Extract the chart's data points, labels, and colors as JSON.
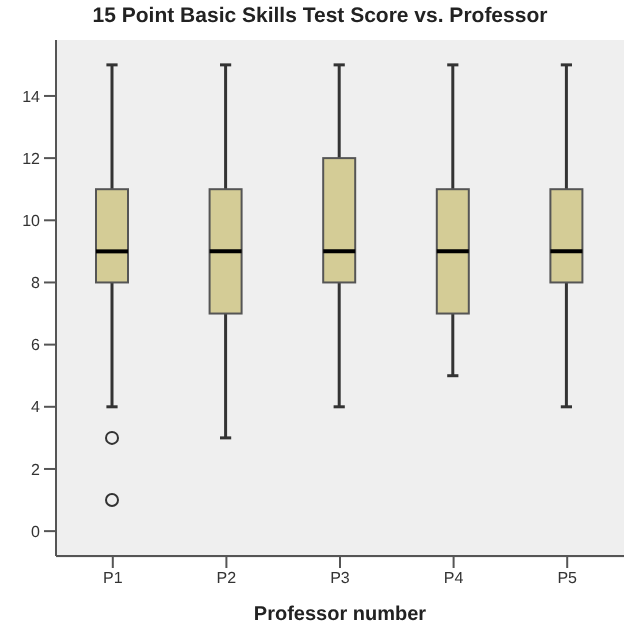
{
  "chart_data": {
    "type": "box",
    "title": "15 Point Basic Skills Test Score vs. Professor",
    "xlabel": "Professor number",
    "categories": [
      "P1",
      "P2",
      "P3",
      "P4",
      "P5"
    ],
    "series": [
      {
        "color": "#d4cc96",
        "boxes": [
          {
            "low": 4,
            "q1": 8,
            "median": 9,
            "q3": 11,
            "high": 15,
            "outliers": [
              3,
              1
            ]
          },
          {
            "low": 3,
            "q1": 7,
            "median": 9,
            "q3": 11,
            "high": 15
          },
          {
            "low": 4,
            "q1": 8,
            "median": 9,
            "q3": 12,
            "high": 15
          },
          {
            "low": 5,
            "q1": 7,
            "median": 9,
            "q3": 11,
            "high": 15
          },
          {
            "low": 4,
            "q1": 8,
            "median": 9,
            "q3": 11,
            "high": 15
          }
        ]
      }
    ],
    "ylim": [
      -0.8,
      15.8
    ],
    "yticks": [
      0,
      2,
      4,
      6,
      8,
      10,
      12,
      14
    ],
    "grid": false,
    "legend": false,
    "marker": "circle"
  }
}
